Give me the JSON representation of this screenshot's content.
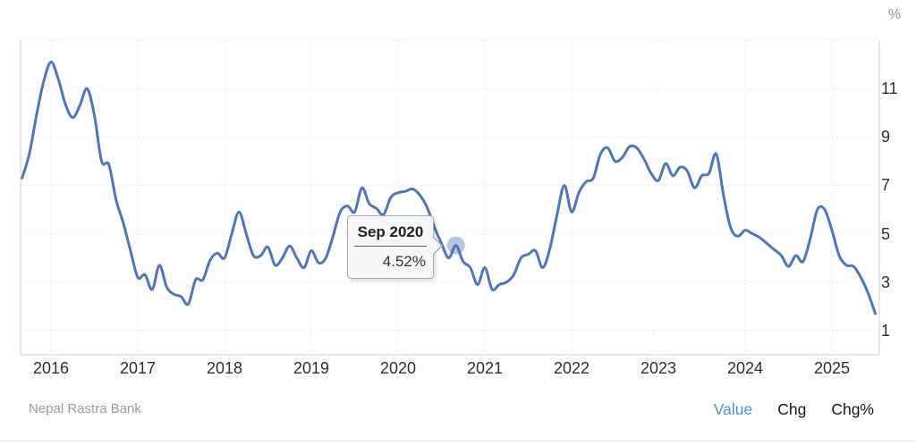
{
  "chart": {
    "unit": "%",
    "source": "Nepal Rastra Bank",
    "tooltip": {
      "title": "Sep 2020",
      "value": "4.52%"
    },
    "footer_tabs": [
      {
        "label": "Value",
        "active": true
      },
      {
        "label": "Chg",
        "active": false
      },
      {
        "label": "Chg%",
        "active": false
      }
    ],
    "colors": {
      "line": "#5076b8",
      "marker": "rgba(80,118,184,0.42)",
      "grid": "#dedede",
      "axis": "#d3d3d3",
      "tick_text": "#2e2e2e",
      "active_tab": "#4a90e2",
      "tab_text": "#16181b",
      "muted_text": "#9a9a9a"
    }
  },
  "chart_data": {
    "type": "line",
    "title": "",
    "unit": "%",
    "frequency": "monthly",
    "x_start": "2015-09",
    "x_end": "2025-07",
    "x_tick_labels": [
      "2016",
      "2017",
      "2018",
      "2019",
      "2020",
      "2021",
      "2022",
      "2023",
      "2024",
      "2025"
    ],
    "y_tick_labels": [
      "1",
      "3",
      "5",
      "7",
      "9",
      "11"
    ],
    "y_ticks": [
      1,
      3,
      5,
      7,
      9,
      11
    ],
    "y_gridlines": [
      1,
      3,
      5,
      7,
      9,
      11,
      13
    ],
    "ylim": [
      0,
      13
    ],
    "grid": "dotted",
    "legend": "off",
    "series": [
      {
        "name": "Value",
        "values": [
          7.3,
          8.3,
          9.9,
          11.3,
          12.1,
          11.4,
          10.35,
          9.8,
          10.3,
          11.0,
          9.9,
          8.0,
          7.85,
          6.4,
          5.45,
          4.3,
          3.2,
          3.3,
          2.7,
          3.7,
          2.8,
          2.5,
          2.4,
          2.1,
          3.1,
          3.1,
          3.9,
          4.2,
          4.0,
          5.0,
          5.9,
          5.0,
          4.1,
          4.1,
          4.45,
          3.7,
          4.0,
          4.5,
          4.0,
          3.6,
          4.3,
          3.8,
          4.0,
          4.9,
          5.9,
          6.15,
          5.9,
          6.9,
          6.25,
          6.05,
          5.8,
          6.5,
          6.7,
          6.75,
          6.85,
          6.6,
          6.1,
          5.3,
          4.6,
          4.0,
          4.52,
          3.85,
          3.6,
          2.9,
          3.6,
          2.7,
          2.9,
          3.0,
          3.3,
          4.0,
          4.15,
          4.3,
          3.6,
          4.4,
          5.8,
          7.0,
          5.9,
          6.7,
          7.15,
          7.3,
          8.3,
          8.55,
          8.0,
          8.15,
          8.6,
          8.55,
          8.1,
          7.5,
          7.2,
          7.9,
          7.4,
          7.75,
          7.6,
          6.9,
          7.4,
          7.5,
          8.3,
          6.6,
          5.25,
          4.9,
          5.15,
          5.0,
          4.85,
          4.6,
          4.35,
          4.1,
          3.65,
          4.1,
          3.85,
          4.8,
          6.0,
          6.0,
          5.15,
          4.1,
          3.7,
          3.65,
          3.2,
          2.55,
          1.7
        ]
      }
    ],
    "highlight": {
      "index": 60,
      "label": "Sep 2020",
      "value": 4.52
    }
  }
}
